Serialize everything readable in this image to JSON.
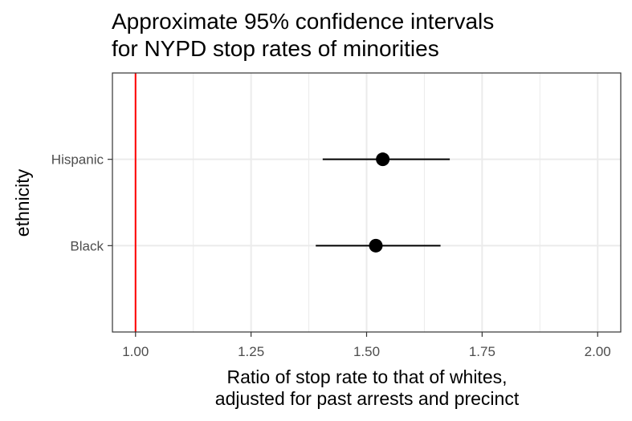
{
  "chart_data": {
    "type": "errorbar",
    "title_lines": [
      "Approximate 95% confidence intervals",
      "for NYPD stop rates of minorities"
    ],
    "xlabel_lines": [
      "Ratio of stop rate to that of whites,",
      "adjusted for past arrests and precinct"
    ],
    "ylabel": "ethnicity",
    "xlim": [
      0.95,
      2.05
    ],
    "x_ticks": [
      1.0,
      1.25,
      1.5,
      1.75,
      2.0
    ],
    "x_tick_labels": [
      "1.00",
      "1.25",
      "1.50",
      "1.75",
      "2.00"
    ],
    "categories": [
      "Black",
      "Hispanic"
    ],
    "points": [
      {
        "category": "Black",
        "estimate": 1.52,
        "lower": 1.39,
        "upper": 1.66
      },
      {
        "category": "Hispanic",
        "estimate": 1.535,
        "lower": 1.405,
        "upper": 1.68
      }
    ],
    "reference_line": {
      "x": 1.0,
      "color": "#ff0000"
    },
    "grid": true,
    "theme": "black-and-white",
    "colors": {
      "points": "#000000",
      "grid": "#ebebeb",
      "panel_border": "#333333"
    }
  }
}
